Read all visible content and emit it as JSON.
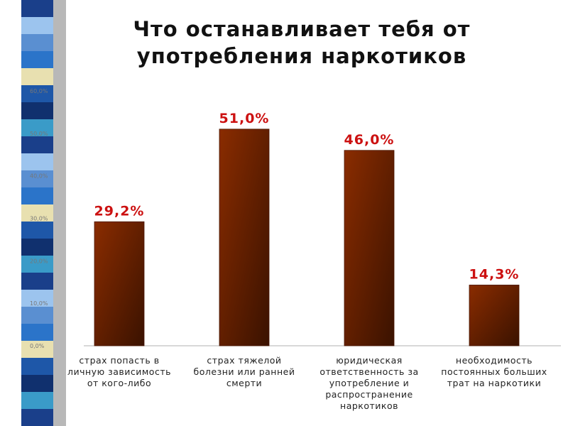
{
  "colors": {
    "bar_fill": "#8a2c00",
    "bar_shadow": "#3a1200",
    "value_label": "#cc1111",
    "tick_label": "#777777",
    "stripe_palette": [
      "#1a3f8a",
      "#2b74c9",
      "#10306e",
      "#9cc4ee",
      "#e8e0b0",
      "#3a9bc8",
      "#5a8fd1",
      "#1e57a8"
    ],
    "stripe_gray": "#b8b8b8"
  },
  "chart_data": {
    "type": "bar",
    "title": "Что останавливает тебя от\nупотребления наркотиков",
    "categories": [
      "страх попасть в личную зависимость от кого-либо",
      "страх тяжелой болезни или ранней смерти",
      "юридическая ответственность за употребление и распространение наркотиков",
      "необходимость постоянных больших трат на наркотики"
    ],
    "values": [
      29.2,
      51.0,
      46.0,
      14.3
    ],
    "value_labels": [
      "29,2%",
      "51,0%",
      "46,0%",
      "14,3%"
    ],
    "yticks": [
      "0,0%",
      "10,0%",
      "20,0%",
      "30,0%",
      "40,0%",
      "50,0%",
      "60,0%"
    ],
    "ylim": [
      0,
      60
    ],
    "xlabel": "",
    "ylabel": "",
    "grid": false,
    "legend": "none"
  }
}
